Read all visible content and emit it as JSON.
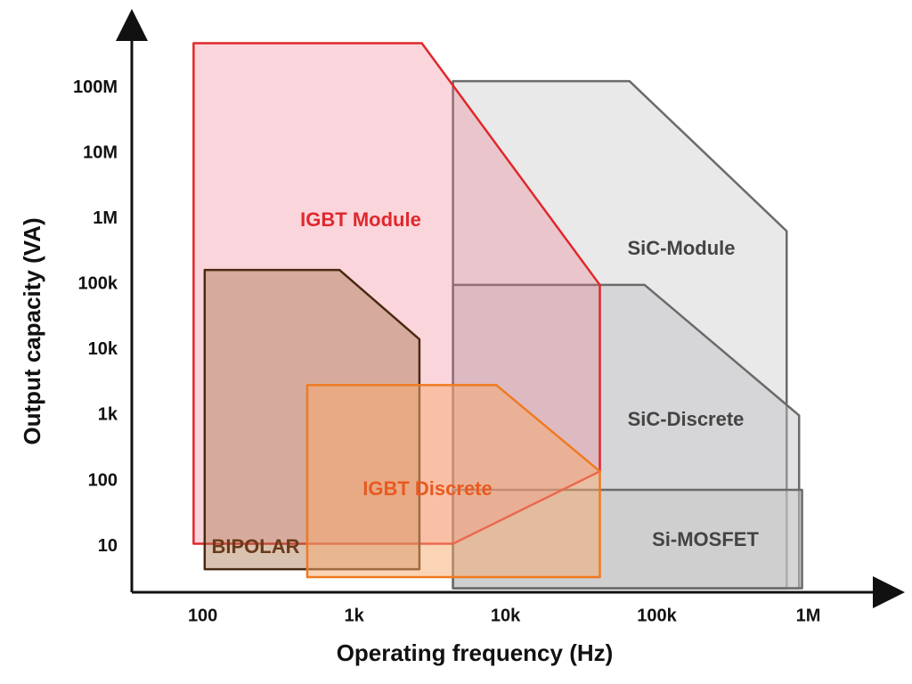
{
  "chart_data": {
    "type": "region",
    "xlabel": "Operating frequency (Hz)",
    "ylabel": "Output capacity (VA)",
    "xscale": "log",
    "yscale": "log",
    "xlim": [
      34,
      3500000
    ],
    "ylim": [
      2,
      1000000000
    ],
    "xticks": [
      100,
      {
        "value": 1000,
        "label": "1k"
      },
      {
        "value": 10000,
        "label": "10k"
      },
      {
        "value": 100000,
        "label": "100k"
      },
      {
        "value": 1000000,
        "label": "1M"
      }
    ],
    "yticks": [
      10,
      100,
      {
        "value": 1000,
        "label": "1k"
      },
      {
        "value": 10000,
        "label": "10k"
      },
      {
        "value": 100000,
        "label": "100k"
      },
      {
        "value": 1000000,
        "label": "1M"
      },
      {
        "value": 10000000,
        "label": "10M"
      },
      {
        "value": 100000000,
        "label": "100M"
      }
    ],
    "grid": false,
    "series": [
      {
        "name": "SiC-Module",
        "color": "#6b6b6b",
        "fill": "rgba(200,200,200,0.4)",
        "label_color": "#444444",
        "x": [
          4500,
          4500,
          66000,
          720000,
          720000
        ],
        "y": [
          2.3,
          126000000,
          126000000,
          650000,
          2.3
        ]
      },
      {
        "name": "SiC-Discrete",
        "color": "#6b6b6b",
        "fill": "rgba(190,190,195,0.45)",
        "label_color": "#444444",
        "x": [
          4500,
          4500,
          83000,
          870000,
          870000
        ],
        "y": [
          2.3,
          98000,
          98000,
          1000,
          2.3
        ]
      },
      {
        "name": "Si-MOSFET",
        "color": "#6b6b6b",
        "fill": "rgba(200,200,200,0.5)",
        "label_color": "#444444",
        "x": [
          4500,
          4500,
          910000,
          910000
        ],
        "y": [
          2.3,
          73,
          73,
          2.3
        ]
      },
      {
        "name": "IGBT Module",
        "color": "#e0282c",
        "fill": "rgba(240,120,140,0.3)",
        "label_color": "#e0282c",
        "x": [
          87,
          87,
          2800,
          42000,
          42000,
          4500
        ],
        "y": [
          11,
          480000000,
          480000000,
          98000,
          140,
          11
        ]
      },
      {
        "name": "BIPOLAR",
        "color": "#4a2a12",
        "fill": "rgba(170,120,80,0.45)",
        "label_color": "#6b3a1a",
        "x": [
          103,
          103,
          800,
          2700,
          2700
        ],
        "y": [
          4.5,
          166000,
          166000,
          14500,
          4.5
        ]
      },
      {
        "name": "IGBT Discrete",
        "color": "#f07a20",
        "fill": "rgba(248,170,110,0.5)",
        "label_color": "#e85a20",
        "x": [
          490,
          490,
          8700,
          42000,
          42000
        ],
        "y": [
          3.4,
          2900,
          2900,
          140,
          3.4
        ]
      }
    ]
  }
}
